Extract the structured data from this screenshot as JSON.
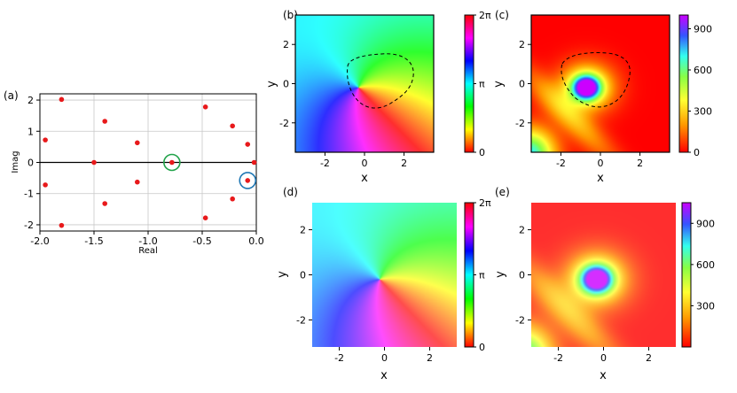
{
  "figure": {
    "panels": {
      "a": {
        "label": "(a)",
        "xlabel": "Real",
        "ylabel": "Imag"
      },
      "b": {
        "label": "(b)",
        "xlabel": "x",
        "ylabel": "y"
      },
      "c": {
        "label": "(c)",
        "xlabel": "x",
        "ylabel": "y"
      },
      "d": {
        "label": "(d)",
        "xlabel": "x",
        "ylabel": "y"
      },
      "e": {
        "label": "(e)",
        "xlabel": "x",
        "ylabel": "y"
      }
    }
  },
  "chart_data": [
    {
      "panel": "a",
      "type": "scatter",
      "xlabel": "Real",
      "ylabel": "Imag",
      "xlim": [
        -2.0,
        0.0
      ],
      "ylim": [
        -2.2,
        2.2
      ],
      "xticks": [
        "-2.0",
        "-1.5",
        "-1.0",
        "-0.5",
        "0.0"
      ],
      "yticks": [
        "2",
        "1",
        "0",
        "-1",
        "-2"
      ],
      "grid": true,
      "marker_color": "#e8191b",
      "x": [
        -1.8,
        -1.95,
        -1.5,
        -1.95,
        -1.8,
        -1.4,
        -1.4,
        -1.1,
        -1.1,
        -0.78,
        -0.47,
        -0.47,
        -0.22,
        -0.22,
        -0.08,
        -0.08,
        -0.02
      ],
      "y": [
        2.02,
        0.72,
        0.0,
        -0.72,
        -2.02,
        1.32,
        -1.32,
        0.63,
        -0.63,
        0.0,
        1.78,
        -1.78,
        1.17,
        -1.17,
        0.58,
        -0.58,
        0.0
      ],
      "highlighted": [
        {
          "x": -0.78,
          "y": 0.0,
          "circle_color": "#21a34a"
        },
        {
          "x": -0.08,
          "y": -0.58,
          "circle_color": "#1f77b4"
        }
      ]
    },
    {
      "panel": "b",
      "type": "heatmap",
      "quantity": "phase",
      "xlabel": "x",
      "ylabel": "y",
      "xlim": [
        -3.5,
        3.5
      ],
      "ylim": [
        -3.5,
        3.5
      ],
      "xticks": [
        "-2",
        "0",
        "2"
      ],
      "yticks": [
        "2",
        "0",
        "-2"
      ],
      "colormap": "hsv",
      "colorbar_ticks": [
        "2π",
        "π",
        "0"
      ],
      "colorbar_range": [
        0,
        6.283
      ],
      "contour": "dashed",
      "vortex_center": [
        -0.3,
        -0.2
      ]
    },
    {
      "panel": "c",
      "type": "heatmap",
      "quantity": "amplitude",
      "xlabel": "x",
      "ylabel": "y",
      "xlim": [
        -3.5,
        3.5
      ],
      "ylim": [
        -3.5,
        3.5
      ],
      "xticks": [
        "-2",
        "0",
        "2"
      ],
      "yticks": [
        "2",
        "0",
        "-2"
      ],
      "colormap": "rainbow-r",
      "colorbar_ticks": [
        "900",
        "600",
        "300",
        "0"
      ],
      "colorbar_range": [
        0,
        1000
      ],
      "contour": "dashed",
      "peak_center": [
        -0.7,
        -0.2
      ]
    },
    {
      "panel": "d",
      "type": "heatmap",
      "quantity": "phase",
      "xlabel": "x",
      "ylabel": "y",
      "xlim": [
        -3.2,
        3.2
      ],
      "ylim": [
        -3.2,
        3.2
      ],
      "xticks": [
        "-2",
        "0",
        "2"
      ],
      "yticks": [
        "2",
        "0",
        "-2"
      ],
      "colormap": "hsv",
      "colorbar_ticks": [
        "2π",
        "π",
        "0"
      ],
      "colorbar_range": [
        0,
        6.283
      ],
      "vortex_center": [
        -0.2,
        -0.2
      ]
    },
    {
      "panel": "e",
      "type": "heatmap",
      "quantity": "amplitude",
      "xlabel": "x",
      "ylabel": "y",
      "xlim": [
        -3.2,
        3.2
      ],
      "ylim": [
        -3.2,
        3.2
      ],
      "xticks": [
        "-2",
        "0",
        "2"
      ],
      "yticks": [
        "2",
        "0",
        "-2"
      ],
      "colormap": "rainbow-r",
      "colorbar_ticks": [
        "900",
        "600",
        "300"
      ],
      "colorbar_range": [
        0,
        1050
      ],
      "peak_center": [
        -0.3,
        -0.2
      ]
    }
  ]
}
